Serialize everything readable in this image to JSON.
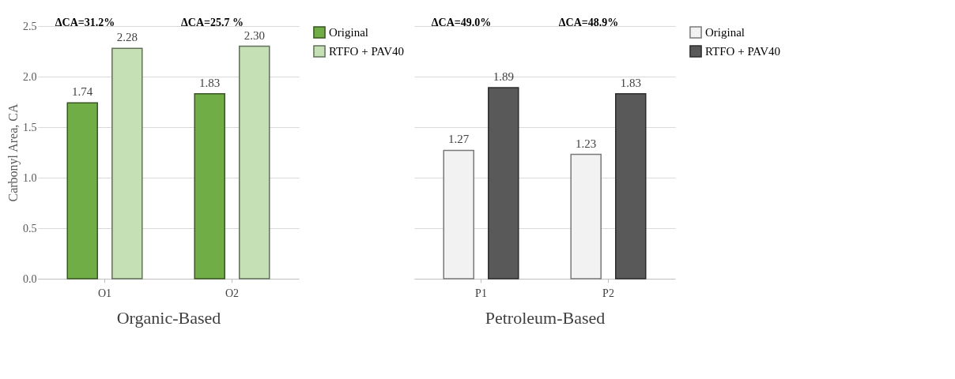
{
  "chart_data": [
    {
      "type": "bar",
      "categories": [
        "O1",
        "O2"
      ],
      "xlabel": "Organic-Based",
      "ylabel": "Carbonyl Area, CA",
      "ylim": [
        0,
        2.5
      ],
      "yticks": [
        {
          "value": 0,
          "label": "0.0"
        },
        {
          "value": 0.5,
          "label": "0.5"
        },
        {
          "value": 1,
          "label": "1.0"
        },
        {
          "value": 1.5,
          "label": "1.5"
        },
        {
          "value": 2,
          "label": "2.0"
        },
        {
          "value": 2.5,
          "label": "2.5"
        }
      ],
      "grid": "y",
      "legend": "right",
      "series": [
        {
          "name": "Original",
          "color": "#70ad47",
          "values": [
            1.74,
            1.83
          ],
          "value_labels": [
            "1.74",
            "1.83"
          ]
        },
        {
          "name": "RTFO + PAV40",
          "color": "#c5e0b4",
          "values": [
            2.28,
            2.3
          ],
          "value_labels": [
            "2.28",
            "2.30"
          ]
        }
      ],
      "annotations": [
        "ΔCA=31.2%",
        "ΔCA=25.7 %"
      ]
    },
    {
      "type": "bar",
      "categories": [
        "P1",
        "P2"
      ],
      "xlabel": "Petroleum-Based",
      "ylim": [
        0,
        2.5
      ],
      "yticks": [
        0,
        0.5,
        1,
        1.5,
        2,
        2.5
      ],
      "grid": "y",
      "legend": "right",
      "tick_labels": "x",
      "series": [
        {
          "name": "Original",
          "color": "#f2f2f2",
          "values": [
            1.27,
            1.23
          ],
          "value_labels": [
            "1.27",
            "1.23"
          ]
        },
        {
          "name": "RTFO + PAV40",
          "color": "#595959",
          "values": [
            1.89,
            1.83
          ],
          "value_labels": [
            "1.89",
            "1.83"
          ]
        }
      ],
      "annotations": [
        "ΔCA=49.0%",
        "ΔCA=48.9%"
      ]
    }
  ]
}
